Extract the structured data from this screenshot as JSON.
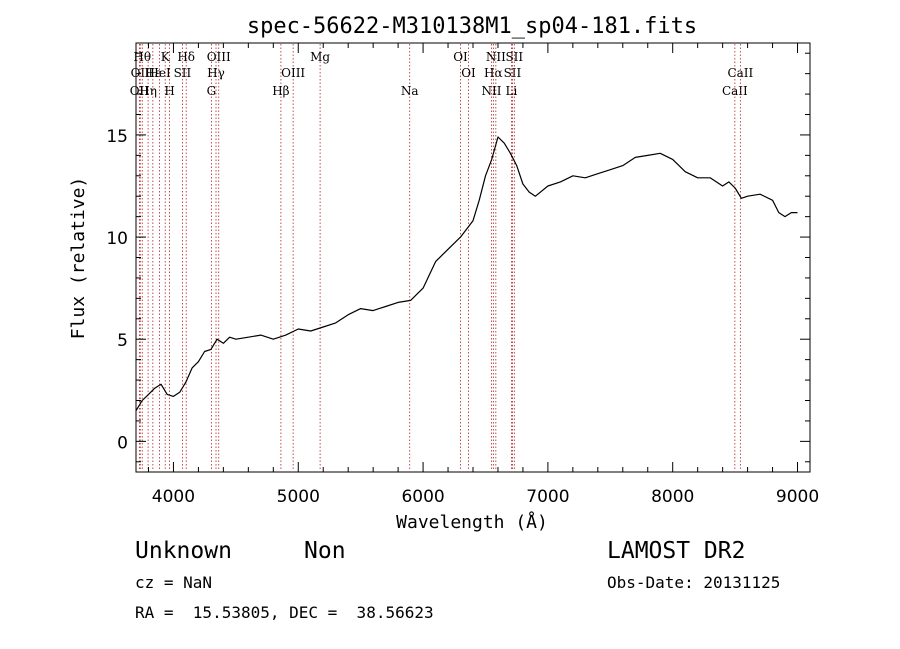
{
  "chart_data": {
    "type": "line",
    "title": "spec-56622-M310138M1_sp04-181.fits",
    "xlabel": "Wavelength (Å)",
    "ylabel": "Flux (relative)",
    "xlim": [
      3700,
      9100
    ],
    "ylim": [
      -1.5,
      19.5
    ],
    "x_ticks": [
      4000,
      5000,
      6000,
      7000,
      8000,
      9000
    ],
    "y_ticks": [
      0,
      5,
      10,
      15
    ],
    "grid": false,
    "series": [
      {
        "x": [
          3700,
          3750,
          3800,
          3850,
          3900,
          3950,
          4000,
          4050,
          4100,
          4150,
          4200,
          4250,
          4300,
          4350,
          4400,
          4450,
          4500,
          4600,
          4700,
          4800,
          4900,
          5000,
          5100,
          5200,
          5300,
          5400,
          5500,
          5600,
          5700,
          5800,
          5900,
          6000,
          6100,
          6200,
          6300,
          6400,
          6450,
          6500,
          6550,
          6600,
          6650,
          6700,
          6750,
          6800,
          6850,
          6900,
          7000,
          7100,
          7200,
          7300,
          7400,
          7500,
          7600,
          7700,
          7800,
          7900,
          8000,
          8100,
          8200,
          8300,
          8400,
          8450,
          8500,
          8550,
          8600,
          8700,
          8800,
          8850,
          8900,
          8950,
          9000
        ],
        "y": [
          1.5,
          2.0,
          2.3,
          2.6,
          2.8,
          2.3,
          2.2,
          2.4,
          2.9,
          3.6,
          3.9,
          4.4,
          4.5,
          5.0,
          4.8,
          5.1,
          5.0,
          5.1,
          5.2,
          5.0,
          5.2,
          5.5,
          5.4,
          5.6,
          5.8,
          6.2,
          6.5,
          6.4,
          6.6,
          6.8,
          6.9,
          7.5,
          8.8,
          9.4,
          10.0,
          10.8,
          11.8,
          13.0,
          13.8,
          14.9,
          14.6,
          14.1,
          13.5,
          12.6,
          12.2,
          12.0,
          12.5,
          12.7,
          13.0,
          12.9,
          13.1,
          13.3,
          13.5,
          13.9,
          14.0,
          14.1,
          13.8,
          13.2,
          12.9,
          12.9,
          12.5,
          12.7,
          12.4,
          11.9,
          12.0,
          12.1,
          11.8,
          11.2,
          11.0,
          11.2,
          11.2
        ]
      }
    ],
    "lines": [
      {
        "wavelength": 3727,
        "label": "OII",
        "row": 2
      },
      {
        "wavelength": 3734,
        "label": "OII",
        "row": 1
      },
      {
        "wavelength": 3750,
        "label": "Hθ",
        "row": 0
      },
      {
        "wavelength": 3797,
        "label": "Hη",
        "row": 2
      },
      {
        "wavelength": 3835,
        "label": "Hε",
        "row": 1
      },
      {
        "wavelength": 3889,
        "label": "HeI",
        "row": 1
      },
      {
        "wavelength": 3934,
        "label": "K",
        "row": 0
      },
      {
        "wavelength": 3969,
        "label": "H",
        "row": 2
      },
      {
        "wavelength": 4072,
        "label": "SII",
        "row": 1
      },
      {
        "wavelength": 4102,
        "label": "Hδ",
        "row": 0
      },
      {
        "wavelength": 4304,
        "label": "G",
        "row": 2
      },
      {
        "wavelength": 4341,
        "label": "Hγ",
        "row": 1
      },
      {
        "wavelength": 4363,
        "label": "OIII",
        "row": 0
      },
      {
        "wavelength": 4861,
        "label": "Hβ",
        "row": 2
      },
      {
        "wavelength": 4959,
        "label": "OIII",
        "row": 1
      },
      {
        "wavelength": 5175,
        "label": "Mg",
        "row": 0
      },
      {
        "wavelength": 5893,
        "label": "Na",
        "row": 2
      },
      {
        "wavelength": 6300,
        "label": "OI",
        "row": 0
      },
      {
        "wavelength": 6364,
        "label": "OI",
        "row": 1
      },
      {
        "wavelength": 6548,
        "label": "NII",
        "row": 2
      },
      {
        "wavelength": 6563,
        "label": "Hα",
        "row": 1
      },
      {
        "wavelength": 6583,
        "label": "NII",
        "row": 0
      },
      {
        "wavelength": 6708,
        "label": "Li",
        "row": 2
      },
      {
        "wavelength": 6716,
        "label": "SII",
        "row": 1
      },
      {
        "wavelength": 6731,
        "label": "SII",
        "row": 0
      },
      {
        "wavelength": 8498,
        "label": "CaII",
        "row": 2
      },
      {
        "wavelength": 8542,
        "label": "CaII",
        "row": 1
      }
    ]
  },
  "info": {
    "class": "Unknown",
    "subclass": "Non",
    "survey": "LAMOST DR2",
    "cz": "cz = NaN",
    "obs_date": "Obs-Date: 20131125",
    "coords": "RA =  15.53805, DEC =  38.56623"
  },
  "colors": {
    "spectrum": "#000000",
    "line_markers": "#b22222",
    "axes": "#000000"
  }
}
